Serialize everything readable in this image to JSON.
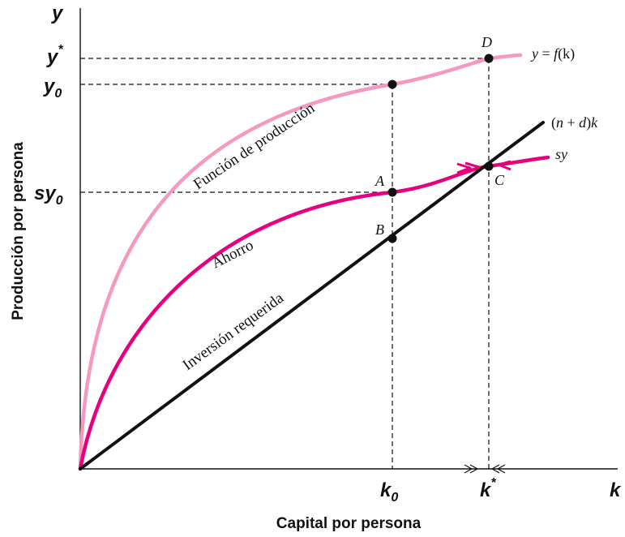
{
  "axes": {
    "y_label": "y",
    "k_label": "k",
    "y_title": "Producción por persona",
    "x_title": "Capital por persona",
    "y_star": "y",
    "y_star_sup": "*",
    "y0_main": "y",
    "y0_sub": "0",
    "sy0_main": "sy",
    "sy0_sub": "0",
    "k0_main": "k",
    "k0_sub": "0",
    "kstar_main": "k",
    "kstar_sup": "*"
  },
  "curves": {
    "production_label": "Función de producción",
    "saving_label": "Ahorro",
    "investment_label": "Inversión requerida",
    "production_eq_y": "y",
    "production_eq_mid": " = ",
    "production_eq_f": "f",
    "production_eq_k": "(k)",
    "investment_eq_open": "(",
    "investment_eq_n": "n",
    "investment_eq_plus": " + ",
    "investment_eq_d": "d",
    "investment_eq_close": ")",
    "investment_eq_k": "k",
    "saving_eq": "sy"
  },
  "points": {
    "A": "A",
    "B": "B",
    "C": "C",
    "D": "D"
  },
  "colors": {
    "production": "#f49ac1",
    "saving": "#e6007e",
    "investment": "#111111",
    "axis": "#111111"
  }
}
